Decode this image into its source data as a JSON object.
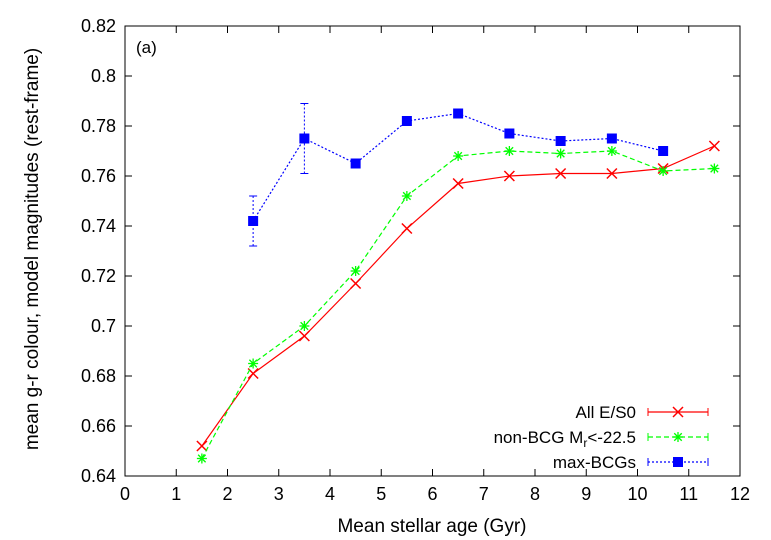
{
  "chart_data": {
    "type": "line",
    "panel_label": "(a)",
    "xlabel": "Mean stellar age (Gyr)",
    "ylabel": "mean g-r colour, model magnitudes (rest-frame)",
    "xlim": [
      0,
      12
    ],
    "ylim": [
      0.64,
      0.82
    ],
    "x_ticks": [
      0,
      1,
      2,
      3,
      4,
      5,
      6,
      7,
      8,
      9,
      10,
      11,
      12
    ],
    "y_ticks": [
      "0.64",
      "0.66",
      "0.68",
      "0.7",
      "0.72",
      "0.74",
      "0.76",
      "0.78",
      "0.8",
      "0.82"
    ],
    "grid": false,
    "legend_position": "bottom-right",
    "series": [
      {
        "name": "All E/S0",
        "color": "#ff0000",
        "line_style": "solid",
        "marker": "x-cross",
        "x": [
          1.5,
          2.5,
          3.5,
          4.5,
          5.5,
          6.5,
          7.5,
          8.5,
          9.5,
          10.5,
          11.5
        ],
        "y": [
          0.652,
          0.681,
          0.696,
          0.717,
          0.739,
          0.757,
          0.76,
          0.761,
          0.761,
          0.763,
          0.772
        ]
      },
      {
        "name": "non-BCG M",
        "name_subscript": "r",
        "name_suffix": "<-22.5",
        "color": "#00ff00",
        "line_style": "dashed",
        "marker": "asterisk",
        "x": [
          1.5,
          2.5,
          3.5,
          4.5,
          5.5,
          6.5,
          7.5,
          8.5,
          9.5,
          10.5,
          11.5
        ],
        "y": [
          0.647,
          0.685,
          0.7,
          0.722,
          0.752,
          0.768,
          0.77,
          0.769,
          0.77,
          0.762,
          0.763
        ]
      },
      {
        "name": "max-BCGs",
        "color": "#0000ff",
        "line_style": "dotted",
        "marker": "filled-square",
        "x": [
          2.5,
          3.5,
          4.5,
          5.5,
          6.5,
          7.5,
          8.5,
          9.5,
          10.5
        ],
        "y": [
          0.742,
          0.775,
          0.765,
          0.782,
          0.785,
          0.777,
          0.774,
          0.775,
          0.77
        ],
        "yerr": [
          0.01,
          0.014,
          0.0,
          0.0,
          0.0,
          0.0,
          0.0,
          0.0,
          0.0
        ]
      }
    ]
  }
}
